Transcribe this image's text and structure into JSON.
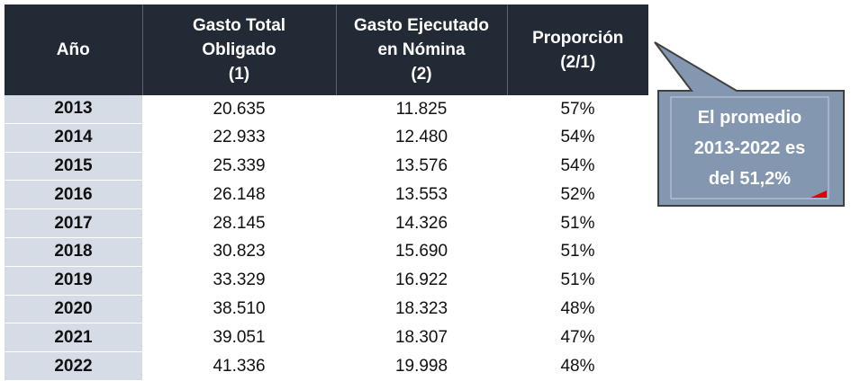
{
  "table": {
    "headers": [
      {
        "lines": [
          "Año"
        ]
      },
      {
        "lines": [
          "Gasto Total",
          "Obligado",
          "(1)"
        ]
      },
      {
        "lines": [
          "Gasto Ejecutado",
          "en Nómina",
          "(2)"
        ]
      },
      {
        "lines": [
          "Proporción",
          "(2/1)"
        ]
      }
    ],
    "rows": [
      {
        "year": "2013",
        "total": "20.635",
        "nomina": "11.825",
        "prop": "57%"
      },
      {
        "year": "2014",
        "total": "22.933",
        "nomina": "12.480",
        "prop": "54%"
      },
      {
        "year": "2015",
        "total": "25.339",
        "nomina": "13.576",
        "prop": "54%"
      },
      {
        "year": "2016",
        "total": "26.148",
        "nomina": "13.553",
        "prop": "52%"
      },
      {
        "year": "2017",
        "total": "28.145",
        "nomina": "14.326",
        "prop": "51%"
      },
      {
        "year": "2018",
        "total": "30.823",
        "nomina": "15.690",
        "prop": "51%"
      },
      {
        "year": "2019",
        "total": "33.329",
        "nomina": "16.922",
        "prop": "51%"
      },
      {
        "year": "2020",
        "total": "38.510",
        "nomina": "18.323",
        "prop": "48%"
      },
      {
        "year": "2021",
        "total": "39.051",
        "nomina": "18.307",
        "prop": "47%"
      },
      {
        "year": "2022",
        "total": "41.336",
        "nomina": "19.998",
        "prop": "48%"
      }
    ]
  },
  "callout": {
    "lines": [
      "El promedio",
      "2013-2022 es",
      "del 51,2%"
    ],
    "fill_color": "#8497b0",
    "border_color": "#404040",
    "marker_color": "#e00000"
  },
  "colors": {
    "header_bg": "#222a35",
    "year_bg": "#d6dce5"
  }
}
